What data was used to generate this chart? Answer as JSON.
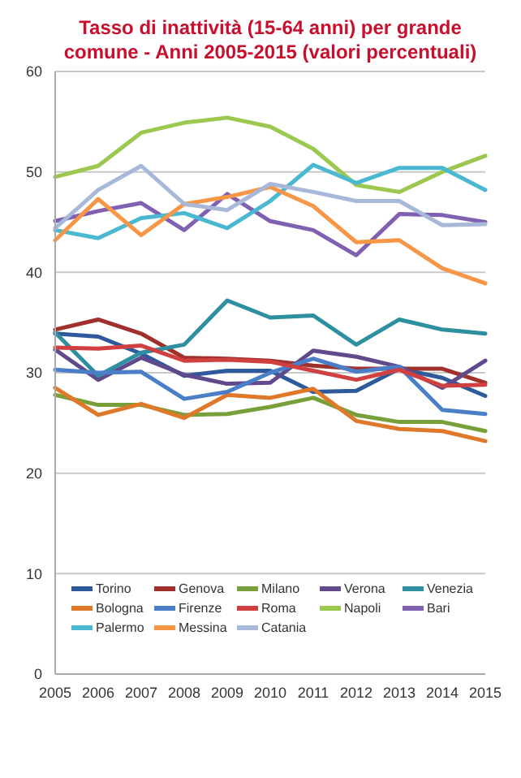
{
  "chart_data": {
    "type": "line",
    "title": "Tasso di inattività (15-64 anni) per grande comune - Anni 2005-2015 (valori percentuali)",
    "categories": [
      "2005",
      "2006",
      "2007",
      "2008",
      "2009",
      "2010",
      "2011",
      "2012",
      "2013",
      "2014",
      "2015"
    ],
    "ylim": [
      0,
      60
    ],
    "yticks": [
      0,
      10,
      20,
      30,
      40,
      50,
      60
    ],
    "grid": "y",
    "legend": "bottom",
    "marker": "none",
    "line_style": "solid",
    "series": [
      {
        "name": "Torino",
        "color": "#2e5a9c",
        "values": [
          33.9,
          33.6,
          31.9,
          29.7,
          30.2,
          30.2,
          28.1,
          28.2,
          30.4,
          29.5,
          27.7
        ]
      },
      {
        "name": "Genova",
        "color": "#a0302c",
        "values": [
          34.3,
          35.3,
          33.9,
          31.5,
          31.4,
          31.2,
          30.7,
          30.4,
          30.4,
          30.4,
          29.0
        ]
      },
      {
        "name": "Milano",
        "color": "#77a03a",
        "values": [
          27.8,
          26.8,
          26.8,
          25.8,
          25.9,
          26.6,
          27.5,
          25.8,
          25.1,
          25.1,
          24.2
        ]
      },
      {
        "name": "Verona",
        "color": "#604a8c",
        "values": [
          32.3,
          29.3,
          31.5,
          29.8,
          28.9,
          29.0,
          32.2,
          31.6,
          30.6,
          28.5,
          31.2
        ]
      },
      {
        "name": "Venezia",
        "color": "#2e8fa0",
        "values": [
          34.0,
          29.7,
          32.0,
          32.8,
          37.2,
          35.5,
          35.7,
          32.8,
          35.3,
          34.3,
          33.9
        ]
      },
      {
        "name": "Bologna",
        "color": "#e0782a",
        "values": [
          28.5,
          25.8,
          26.9,
          25.5,
          27.8,
          27.5,
          28.4,
          25.2,
          24.4,
          24.2,
          23.2
        ]
      },
      {
        "name": "Firenze",
        "color": "#4a7fc8",
        "values": [
          30.3,
          30.0,
          30.1,
          27.4,
          28.1,
          30.0,
          31.4,
          30.1,
          30.6,
          26.3,
          25.9
        ]
      },
      {
        "name": "Roma",
        "color": "#d04040",
        "values": [
          32.5,
          32.4,
          32.7,
          31.2,
          31.3,
          31.1,
          30.2,
          29.3,
          30.3,
          28.7,
          28.8
        ]
      },
      {
        "name": "Napoli",
        "color": "#9cc850",
        "values": [
          49.5,
          50.6,
          53.9,
          54.9,
          55.4,
          54.5,
          52.3,
          48.7,
          48.0,
          50.0,
          51.6
        ]
      },
      {
        "name": "Bari",
        "color": "#8060b0",
        "values": [
          45.1,
          46.1,
          46.9,
          44.2,
          47.8,
          45.1,
          44.2,
          41.7,
          45.8,
          45.7,
          45.0
        ]
      },
      {
        "name": "Palermo",
        "color": "#4ab8d0",
        "values": [
          44.2,
          43.4,
          45.4,
          45.9,
          44.4,
          47.1,
          50.7,
          48.9,
          50.4,
          50.4,
          48.2
        ]
      },
      {
        "name": "Messina",
        "color": "#f79646",
        "values": [
          43.2,
          47.3,
          43.7,
          46.8,
          47.5,
          48.5,
          46.6,
          43.0,
          43.2,
          40.4,
          38.9
        ]
      },
      {
        "name": "Catania",
        "color": "#a8b8d8",
        "values": [
          44.4,
          48.2,
          50.6,
          46.8,
          46.2,
          48.8,
          48.0,
          47.1,
          47.1,
          44.7,
          44.8
        ]
      }
    ]
  }
}
